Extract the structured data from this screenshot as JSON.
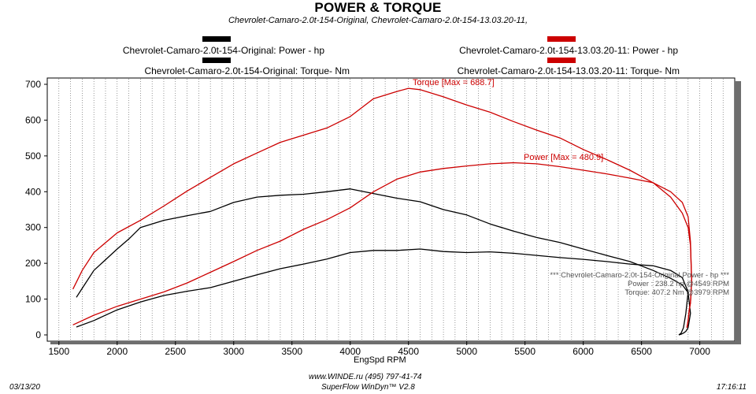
{
  "chart_data": {
    "type": "line",
    "title": "POWER & TORQUE",
    "subtitle": "Chevrolet-Camaro-2.0t-154-Original, Chevrolet-Camaro-2.0t-154-13.03.20-11,",
    "xlabel": "EngSpd  RPM",
    "ylabel": "",
    "xlim": [
      1400,
      7300
    ],
    "ylim": [
      0,
      720
    ],
    "x_ticks": [
      1500,
      2000,
      2500,
      3000,
      3500,
      4000,
      4500,
      5000,
      5500,
      6000,
      6500,
      7000
    ],
    "y_ticks": [
      0,
      100,
      200,
      300,
      400,
      500,
      600,
      700
    ],
    "grid": "vertical dotted",
    "legend": [
      {
        "label": "Chevrolet-Camaro-2.0t-154-Original: Power -  hp",
        "color": "#000000"
      },
      {
        "label": "Chevrolet-Camaro-2.0t-154-Original: Torque-  Nm",
        "color": "#000000"
      },
      {
        "label": "Chevrolet-Camaro-2.0t-154-13.03.20-11: Power -  hp",
        "color": "#cc0000"
      },
      {
        "label": "Chevrolet-Camaro-2.0t-154-13.03.20-11: Torque-  Nm",
        "color": "#cc0000"
      }
    ],
    "series": [
      {
        "name": "Chevrolet-Camaro-2.0t-154-Original: Torque-  Nm",
        "color": "#000000",
        "x": [
          1650,
          1700,
          1800,
          1900,
          2000,
          2100,
          2200,
          2400,
          2600,
          2800,
          3000,
          3200,
          3400,
          3600,
          3800,
          4000,
          4200,
          4400,
          4600,
          4800,
          5000,
          5200,
          5400,
          5600,
          5800,
          6000,
          6200,
          6400,
          6600,
          6750,
          6850,
          6900,
          6920,
          6900,
          6880,
          6860,
          6840,
          6820
        ],
        "y": [
          105,
          130,
          180,
          210,
          240,
          268,
          300,
          320,
          333,
          345,
          370,
          385,
          390,
          393,
          400,
          408,
          395,
          382,
          372,
          350,
          335,
          310,
          290,
          272,
          258,
          240,
          222,
          205,
          180,
          158,
          140,
          118,
          60,
          20,
          10,
          5,
          2,
          0
        ]
      },
      {
        "name": "Chevrolet-Camaro-2.0t-154-Original: Power -  hp",
        "color": "#000000",
        "x": [
          1650,
          1800,
          2000,
          2200,
          2400,
          2600,
          2800,
          3000,
          3200,
          3400,
          3600,
          3800,
          4000,
          4200,
          4400,
          4600,
          4800,
          5000,
          5200,
          5400,
          5600,
          5800,
          6000,
          6200,
          6400,
          6600,
          6750,
          6850,
          6900,
          6880,
          6860,
          6840,
          6820
        ],
        "y": [
          22,
          40,
          70,
          92,
          110,
          122,
          132,
          150,
          168,
          185,
          198,
          212,
          230,
          236,
          236,
          240,
          233,
          230,
          232,
          228,
          222,
          216,
          211,
          205,
          198,
          193,
          180,
          160,
          120,
          60,
          20,
          5,
          0
        ]
      },
      {
        "name": "Chevrolet-Camaro-2.0t-154-13.03.20-11: Torque-  Nm",
        "color": "#cc0000",
        "x": [
          1620,
          1700,
          1800,
          2000,
          2200,
          2400,
          2600,
          2800,
          3000,
          3200,
          3400,
          3600,
          3800,
          4000,
          4200,
          4400,
          4500,
          4600,
          4800,
          5000,
          5200,
          5400,
          5600,
          5800,
          6000,
          6200,
          6400,
          6600,
          6750,
          6850,
          6900,
          6920,
          6930,
          6920,
          6910,
          6900,
          6890
        ],
        "y": [
          128,
          180,
          230,
          285,
          320,
          360,
          402,
          440,
          478,
          508,
          538,
          558,
          578,
          610,
          660,
          680,
          688.7,
          685,
          665,
          642,
          622,
          596,
          572,
          550,
          518,
          490,
          460,
          425,
          385,
          340,
          300,
          250,
          150,
          90,
          70,
          40,
          20
        ]
      },
      {
        "name": "Chevrolet-Camaro-2.0t-154-13.03.20-11: Power -  hp",
        "color": "#cc0000",
        "x": [
          1620,
          1800,
          2000,
          2200,
          2400,
          2600,
          2800,
          3000,
          3200,
          3400,
          3600,
          3800,
          4000,
          4200,
          4400,
          4600,
          4800,
          5000,
          5200,
          5400,
          5600,
          5800,
          6000,
          6200,
          6400,
          6600,
          6750,
          6850,
          6900,
          6920,
          6930,
          6920,
          6910,
          6900,
          6890
        ],
        "y": [
          28,
          55,
          80,
          100,
          120,
          145,
          175,
          205,
          236,
          262,
          295,
          322,
          355,
          400,
          435,
          455,
          465,
          472,
          478,
          480.9,
          478,
          470,
          460,
          450,
          438,
          425,
          400,
          370,
          330,
          260,
          150,
          90,
          70,
          40,
          20
        ]
      }
    ],
    "annotations": {
      "torque_max": "Torque [Max = 688.7]",
      "power_max": "Power  [Max = 480.9]",
      "info_line1": "*** Chevrolet-Camaro-2.0t-154-Original Power - hp  ***",
      "info_line2": "Power : 238.2 hp   @4549 RPM",
      "info_line3": "Torque: 407.2 Nm    @3979 RPM"
    }
  },
  "footer": {
    "date": "03/13/20",
    "line1": "www.WINDE.ru   (495) 797-41-74",
    "line2": "SuperFlow WinDyn™ V2.8",
    "time": "17:16:11"
  }
}
